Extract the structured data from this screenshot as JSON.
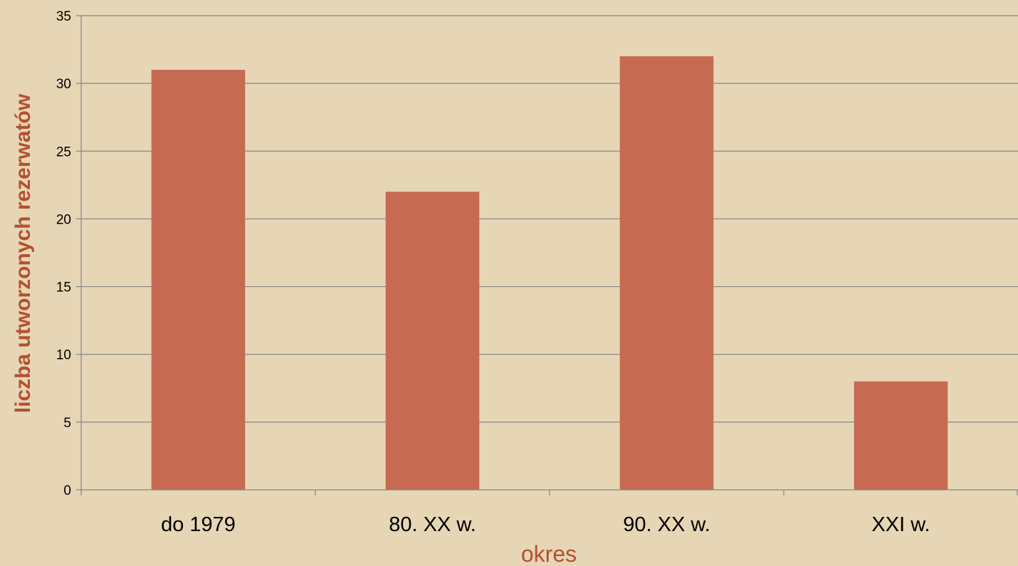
{
  "chart_data": {
    "type": "bar",
    "categories": [
      "do 1979",
      "80. XX w.",
      "90. XX w.",
      "XXI w."
    ],
    "values": [
      31,
      22,
      32,
      8
    ],
    "xlabel": "okres",
    "ylabel": "liczba utworzonych rezerwatów",
    "ylim": [
      0,
      35
    ],
    "yticks": [
      0,
      5,
      10,
      15,
      20,
      25,
      30,
      35
    ],
    "grid": true,
    "legend": "none",
    "colors": {
      "bar": "#C66A51",
      "background": "#E6D6B6",
      "grid": "#868686",
      "axis_title": "#B4502F"
    }
  }
}
